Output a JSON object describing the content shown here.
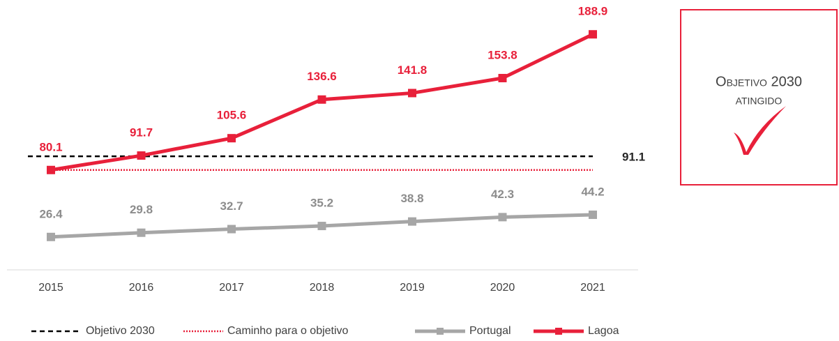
{
  "chart_data": {
    "type": "line",
    "x": [
      "2015",
      "2016",
      "2017",
      "2018",
      "2019",
      "2020",
      "2021"
    ],
    "ylim": [
      0,
      210
    ],
    "series": [
      {
        "name": "Objetivo 2030",
        "color": "#000000",
        "style": "dashed",
        "values": [
          91.1,
          91.1,
          91.1,
          91.1,
          91.1,
          91.1,
          91.1
        ]
      },
      {
        "name": "Caminho para o objetivo",
        "color": "#e8203a",
        "style": "dotted",
        "values": [
          80.1,
          80.1,
          80.1,
          80.1,
          80.1,
          80.1,
          80.1
        ]
      },
      {
        "name": "Portugal",
        "color": "#a6a6a6",
        "style": "solid",
        "marker": "square",
        "values": [
          26.4,
          29.8,
          32.7,
          35.2,
          38.8,
          42.3,
          44.2
        ]
      },
      {
        "name": "Lagoa",
        "color": "#e8203a",
        "style": "solid",
        "marker": "square",
        "values": [
          80.1,
          91.7,
          105.6,
          136.6,
          141.8,
          153.8,
          188.9
        ]
      }
    ],
    "badge": {
      "title": "Objetivo 2030",
      "subtitle": "ATINGIDO"
    }
  }
}
